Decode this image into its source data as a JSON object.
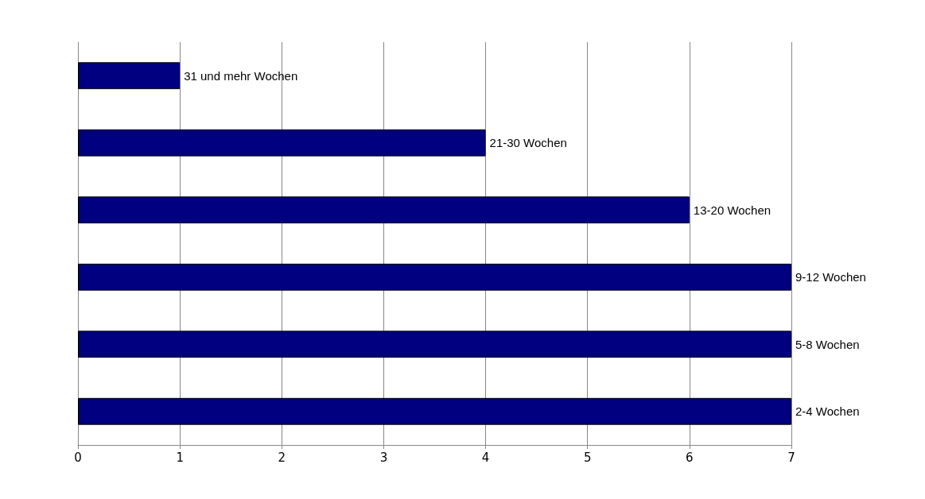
{
  "chart_data": {
    "type": "bar",
    "orientation": "horizontal",
    "categories": [
      "31 und mehr Wochen",
      "21-30 Wochen",
      "13-20 Wochen",
      "9-12 Wochen",
      "5-8 Wochen",
      "2-4 Wochen"
    ],
    "values": [
      1,
      4,
      6,
      7,
      7,
      7
    ],
    "color": "#000080",
    "xlim": [
      0,
      7
    ],
    "xticks": [
      0,
      1,
      2,
      3,
      4,
      5,
      6,
      7
    ],
    "grid": "x"
  }
}
